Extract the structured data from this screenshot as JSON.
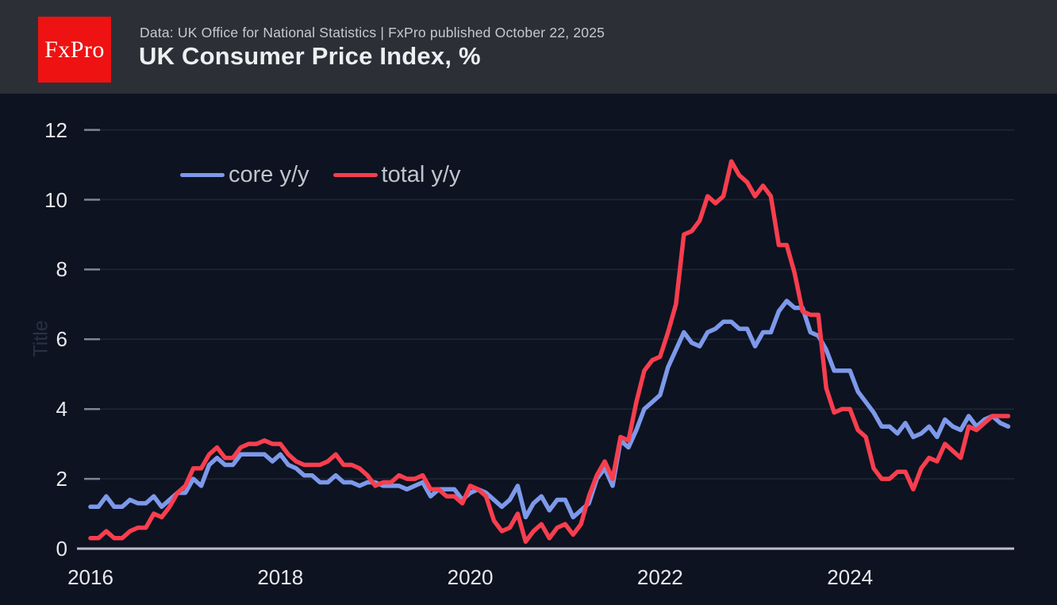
{
  "header": {
    "logo_text": "FxPro",
    "logo_bg": "#ee1212",
    "subtitle": "Data: UK Office for National Statistics | FxPro published October 22, 2025",
    "title": "UK Consumer Price Index, %"
  },
  "chart_data": {
    "type": "line",
    "title": "UK Consumer Price Index, %",
    "ylabel": "Title",
    "x_start": "2016-01",
    "x_end": "2025-09",
    "x_frequency": "monthly",
    "xticks": [
      "2016",
      "2018",
      "2020",
      "2022",
      "2024"
    ],
    "yticks": [
      0,
      2,
      4,
      6,
      8,
      10,
      12
    ],
    "ylim": [
      0,
      12
    ],
    "grid": true,
    "legend_position": "top-left-inside",
    "series": [
      {
        "name": "core y/y",
        "color": "#7d99ea",
        "values": [
          1.2,
          1.2,
          1.5,
          1.2,
          1.2,
          1.4,
          1.3,
          1.3,
          1.5,
          1.2,
          1.4,
          1.6,
          1.6,
          2.0,
          1.8,
          2.4,
          2.6,
          2.4,
          2.4,
          2.7,
          2.7,
          2.7,
          2.7,
          2.5,
          2.7,
          2.4,
          2.3,
          2.1,
          2.1,
          1.9,
          1.9,
          2.1,
          1.9,
          1.9,
          1.8,
          1.9,
          1.9,
          1.8,
          1.8,
          1.8,
          1.7,
          1.8,
          1.9,
          1.5,
          1.7,
          1.7,
          1.7,
          1.4,
          1.6,
          1.7,
          1.6,
          1.4,
          1.2,
          1.4,
          1.8,
          0.9,
          1.3,
          1.5,
          1.1,
          1.4,
          1.4,
          0.9,
          1.1,
          1.3,
          2.0,
          2.3,
          1.8,
          3.1,
          2.9,
          3.4,
          4.0,
          4.2,
          4.4,
          5.2,
          5.7,
          6.2,
          5.9,
          5.8,
          6.2,
          6.3,
          6.5,
          6.5,
          6.3,
          6.3,
          5.8,
          6.2,
          6.2,
          6.8,
          7.1,
          6.9,
          6.9,
          6.2,
          6.1,
          5.7,
          5.1,
          5.1,
          5.1,
          4.5,
          4.2,
          3.9,
          3.5,
          3.5,
          3.3,
          3.6,
          3.2,
          3.3,
          3.5,
          3.2,
          3.7,
          3.5,
          3.4,
          3.8,
          3.5,
          3.7,
          3.8,
          3.6,
          3.5
        ]
      },
      {
        "name": "total y/y",
        "color": "#f83e4e",
        "values": [
          0.3,
          0.3,
          0.5,
          0.3,
          0.3,
          0.5,
          0.6,
          0.6,
          1.0,
          0.9,
          1.2,
          1.6,
          1.8,
          2.3,
          2.3,
          2.7,
          2.9,
          2.6,
          2.6,
          2.9,
          3.0,
          3.0,
          3.1,
          3.0,
          3.0,
          2.7,
          2.5,
          2.4,
          2.4,
          2.4,
          2.5,
          2.7,
          2.4,
          2.4,
          2.3,
          2.1,
          1.8,
          1.9,
          1.9,
          2.1,
          2.0,
          2.0,
          2.1,
          1.7,
          1.7,
          1.5,
          1.5,
          1.3,
          1.8,
          1.7,
          1.5,
          0.8,
          0.5,
          0.6,
          1.0,
          0.2,
          0.5,
          0.7,
          0.3,
          0.6,
          0.7,
          0.4,
          0.7,
          1.5,
          2.1,
          2.5,
          2.0,
          3.2,
          3.1,
          4.2,
          5.1,
          5.4,
          5.5,
          6.2,
          7.0,
          9.0,
          9.1,
          9.4,
          10.1,
          9.9,
          10.1,
          11.1,
          10.7,
          10.5,
          10.1,
          10.4,
          10.1,
          8.7,
          8.7,
          7.9,
          6.8,
          6.7,
          6.7,
          4.6,
          3.9,
          4.0,
          4.0,
          3.4,
          3.2,
          2.3,
          2.0,
          2.0,
          2.2,
          2.2,
          1.7,
          2.3,
          2.6,
          2.5,
          3.0,
          2.8,
          2.6,
          3.5,
          3.4,
          3.6,
          3.8,
          3.8,
          3.8
        ]
      }
    ]
  }
}
